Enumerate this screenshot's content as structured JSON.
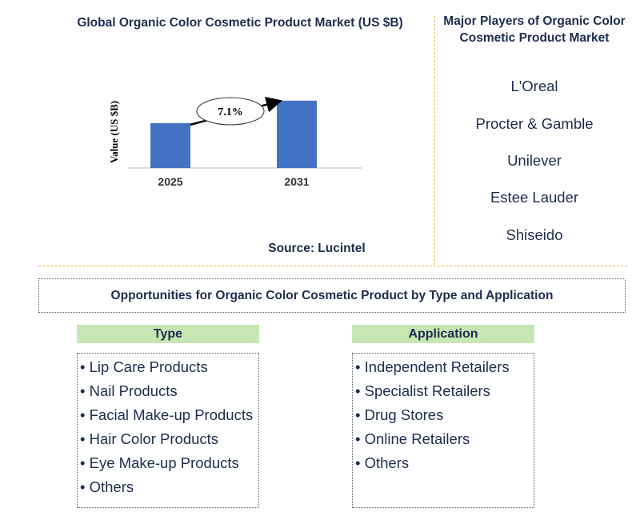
{
  "chart": {
    "title": "Global Organic Color Cosmetic Product Market (US $B)",
    "source": "Source: Lucintel",
    "cagr_label": "7.1%"
  },
  "chart_data": {
    "type": "bar",
    "title": "Global Organic Color Cosmetic Product Market (US $B)",
    "categories": [
      "2025",
      "2031"
    ],
    "values": [
      1.0,
      1.5
    ],
    "ylabel": "Value (US $B)",
    "xlabel": "",
    "ylim": [
      0,
      1.55
    ],
    "annotation": "7.1%",
    "bar_color": "#4472c4",
    "grid": false
  },
  "players": {
    "title": "Major Players of Organic Color Cosmetic Product Market",
    "items": [
      "L'Oreal",
      "Procter & Gamble",
      "Unilever",
      "Estee Lauder",
      "Shiseido"
    ]
  },
  "opportunities": {
    "title": "Opportunities for Organic Color Cosmetic Product by Type and Application",
    "type": {
      "header": "Type",
      "items": [
        "• Lip Care Products",
        "• Nail Products",
        "• Facial Make-up Products",
        "• Hair Color Products",
        "• Eye Make-up Products",
        "• Others"
      ]
    },
    "application": {
      "header": "Application",
      "items": [
        "• Independent Retailers",
        "• Specialist Retailers",
        "• Drug Stores",
        "• Online Retailers",
        "• Others"
      ]
    }
  },
  "colors": {
    "bar": "#4472c4",
    "divider": "#e8b93a",
    "header_bg": "#c6e6b3",
    "text": "#1f2d4d"
  }
}
